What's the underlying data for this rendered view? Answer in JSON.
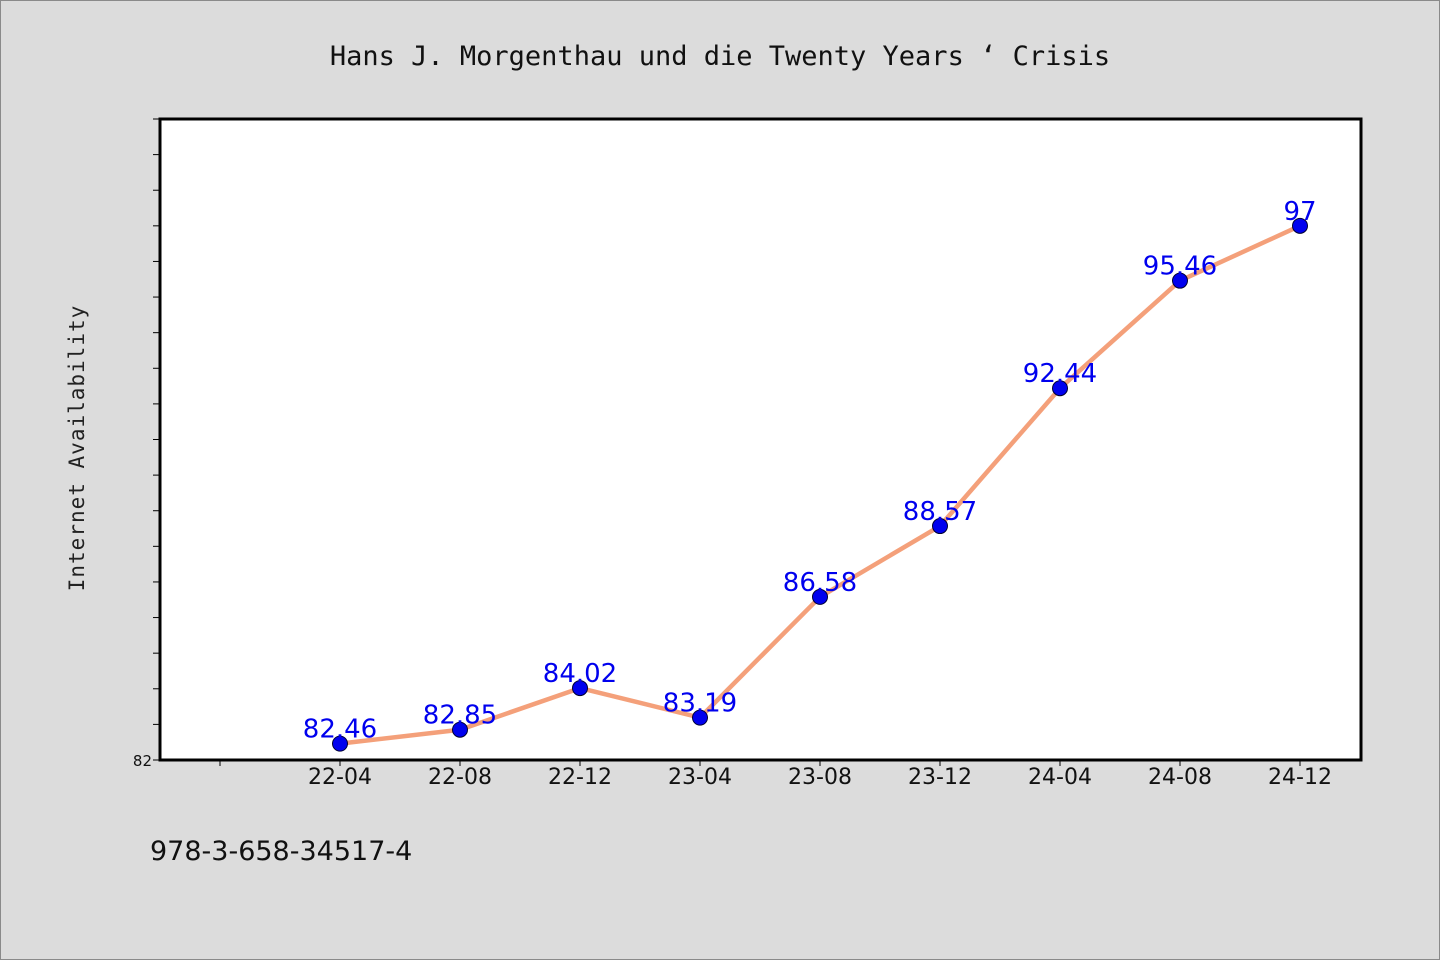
{
  "footer": {
    "code": "978-3-658-34517-4"
  },
  "colors": {
    "background": "#dcdcdc",
    "plot_background": "#ffffff",
    "line": "#f4a07a",
    "marker": "#0000ee",
    "data_label": "#0000ee"
  },
  "chart_data": {
    "type": "line",
    "title": "Hans J. Morgenthau und die Twenty Years ‘ Crisis",
    "xlabel": "",
    "ylabel": "Internet Availability",
    "categories": [
      "22-04",
      "22-08",
      "22-12",
      "23-04",
      "23-08",
      "23-12",
      "24-04",
      "24-08",
      "24-12"
    ],
    "series": [
      {
        "values": [
          82.46,
          82.85,
          84.02,
          83.19,
          86.58,
          88.57,
          92.44,
          95.46,
          97
        ]
      }
    ],
    "data_labels": [
      "82.46",
      "82.85",
      "84.02",
      "83.19",
      "86.58",
      "88.57",
      "92.44",
      "95.46",
      "97"
    ],
    "ylim": [
      82,
      100
    ],
    "y_tick_labels": [
      "82"
    ],
    "grid": false,
    "legend": "none"
  }
}
